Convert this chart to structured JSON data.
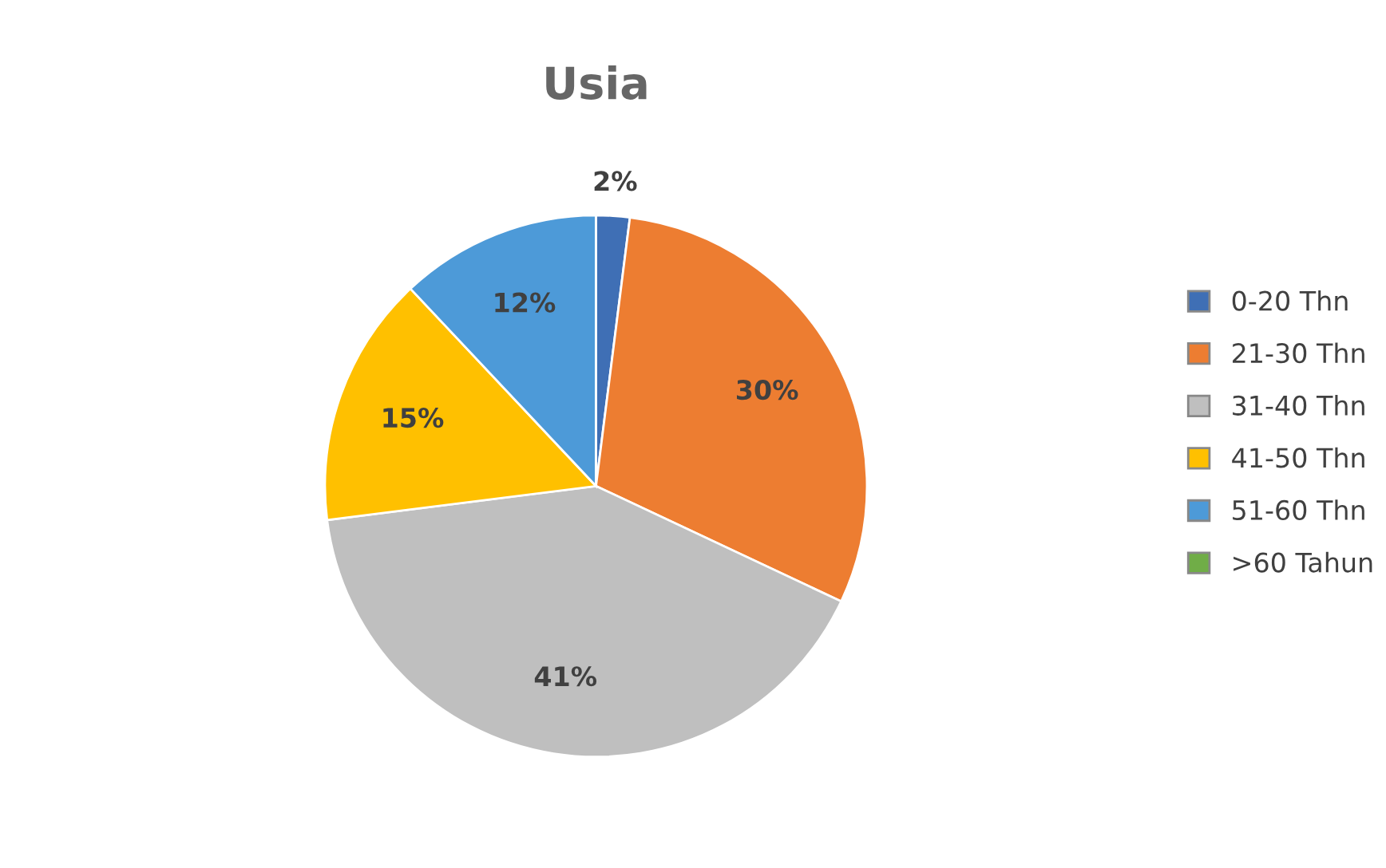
{
  "chart_data": {
    "type": "pie",
    "title": "Usia",
    "categories": [
      "0-20 Thn",
      "21-30 Thn",
      "31-40 Thn",
      "41-50 Thn",
      "51-60 Thn",
      ">60 Tahun"
    ],
    "values": [
      2,
      30,
      41,
      15,
      12,
      0
    ],
    "value_labels": [
      "2%",
      "30%",
      "41%",
      "15%",
      "12%",
      null
    ],
    "colors": [
      "#3f6fb5",
      "#ed7d31",
      "#bfbfbf",
      "#ffc000",
      "#4d9ad8",
      "#70ad47"
    ],
    "legend": "right"
  }
}
